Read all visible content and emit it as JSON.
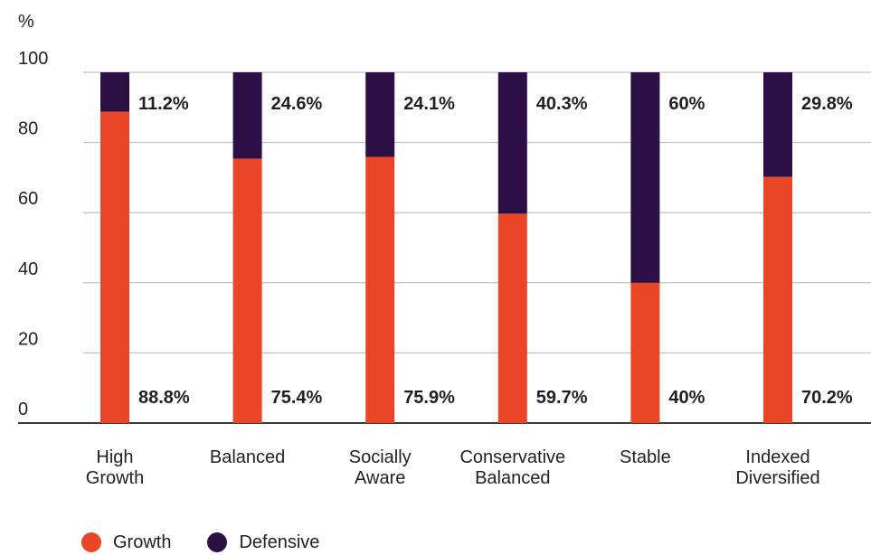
{
  "chart_data": {
    "type": "bar",
    "stacked": true,
    "ylabel": "%",
    "ylim": [
      0,
      100
    ],
    "yticks": [
      0,
      20,
      40,
      60,
      80,
      100
    ],
    "grid": true,
    "legend_position": "bottom-left",
    "categories": [
      [
        "High",
        "Growth"
      ],
      [
        "Balanced"
      ],
      [
        "Socially",
        "Aware"
      ],
      [
        "Conservative",
        "Balanced"
      ],
      [
        "Stable"
      ],
      [
        "Indexed",
        "Diversified"
      ]
    ],
    "series": [
      {
        "name": "Growth",
        "color": "#e84627",
        "values": [
          88.8,
          75.4,
          75.9,
          59.7,
          40,
          70.2
        ],
        "labels": [
          "88.8%",
          "75.4%",
          "75.9%",
          "59.7%",
          "40%",
          "70.2%"
        ]
      },
      {
        "name": "Defensive",
        "color": "#2b0f45",
        "values": [
          11.2,
          24.6,
          24.1,
          40.3,
          60,
          29.8
        ],
        "labels": [
          "11.2%",
          "24.6%",
          "24.1%",
          "40.3%",
          "60%",
          "29.8%"
        ]
      }
    ]
  }
}
